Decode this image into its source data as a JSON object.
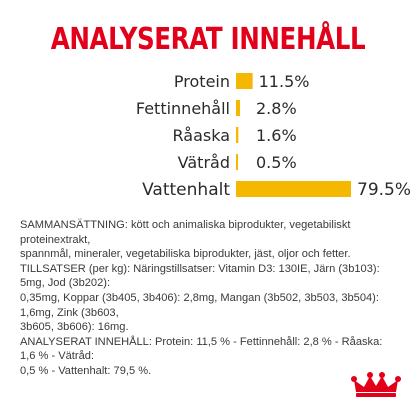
{
  "header": {
    "title": "ANALYSERAT INNEHÅLL"
  },
  "colors": {
    "title": "#e2001a",
    "bar": "#f5b800",
    "text": "#2b2b2b",
    "logo": "#e2001a"
  },
  "chart_data": {
    "type": "bar",
    "orientation": "horizontal",
    "categories": [
      "Protein",
      "Fettinnehåll",
      "Råaska",
      "Vätråd",
      "Vattenhalt"
    ],
    "values": [
      11.5,
      2.8,
      1.6,
      0.5,
      79.5
    ],
    "value_labels": [
      "11.5%",
      "2.8%",
      "1.6%",
      "0.5%",
      "79.5%"
    ],
    "unit": "%",
    "xlim": [
      0,
      79.5
    ],
    "grid": false,
    "legend": "none"
  },
  "composition": {
    "lines": [
      "SAMMANSÄTTNING: kött och animaliska biprodukter, vegetabiliskt proteinextrakt,",
      "spannmål, mineraler, vegetabiliska biprodukter, jäst, oljor och fetter.",
      "TILLSATSER (per kg): Näringstillsatser: Vitamin D3: 130IE, Järn (3b103): 5mg, Jod (3b202):",
      "0,35mg, Koppar (3b405, 3b406): 2,8mg, Mangan (3b502, 3b503, 3b504): 1,6mg, Zink (3b603,",
      "3b605, 3b606): 16mg.",
      "ANALYSERAT INNEHÅLL: Protein: 11,5 % - Fettinnehåll: 2,8 % - Råaska: 1,6 % - Vätråd:",
      "0,5 % - Vattenhalt: 79,5 %."
    ]
  },
  "logo": {
    "icon": "crown-icon"
  }
}
